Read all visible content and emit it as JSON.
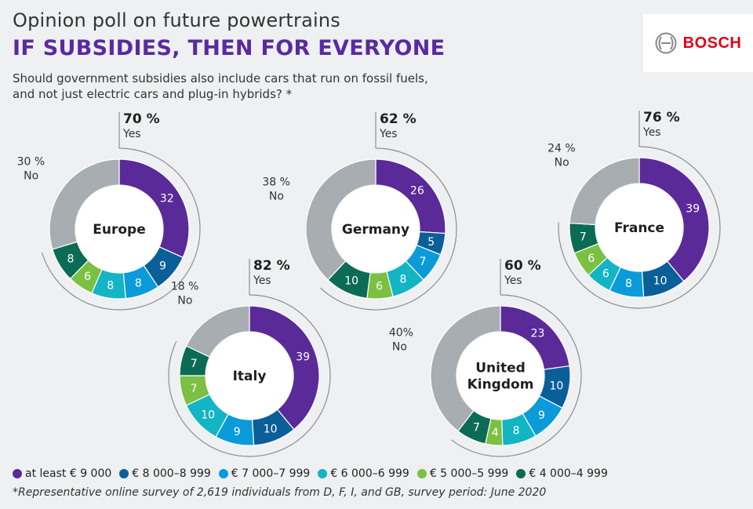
{
  "header": {
    "kicker": "Opinion poll on future powertrains",
    "headline": "IF SUBSIDIES, THEN FOR EVERYONE",
    "question_line1": "Should government subsidies also include cars that run on fossil fuels,",
    "question_line2": "and not just electric cars and plug-in hybrids? *"
  },
  "logo": {
    "text": "BOSCH",
    "color": "#e20015"
  },
  "footnote": "*Representative online survey of 2,619 individuals from D, F, I, and GB, survey period: June 2020",
  "legend": [
    {
      "label": "at least € 9 000",
      "color": "#5b2a99"
    },
    {
      "label": "€ 8 000–8 999",
      "color": "#0b5f99"
    },
    {
      "label": "€ 7 000–7 999",
      "color": "#0b9bd9"
    },
    {
      "label": "€ 6 000–6 999",
      "color": "#13b4c4"
    },
    {
      "label": "€ 5 000–5 999",
      "color": "#7cc043"
    },
    {
      "label": "€ 4 000–4 999",
      "color": "#0c6b55"
    }
  ],
  "chart_data": {
    "type": "donut",
    "title": "Opinion poll on future powertrains",
    "subtitle": "IF SUBSIDIES, THEN FOR EVERYONE",
    "series_names": [
      "at least € 9 000",
      "€ 8 000–8 999",
      "€ 7 000–7 999",
      "€ 6 000–6 999",
      "€ 5 000–5 999",
      "€ 4 000–4 999"
    ],
    "no_color": "#a8adb2",
    "charts": [
      {
        "name": "Europe",
        "name_lines": [
          "Europe"
        ],
        "yes_pct": "70 %",
        "yes_label": "Yes",
        "no_pct": "30 %",
        "no_label": "No",
        "values": [
          32,
          9,
          8,
          8,
          6,
          8
        ],
        "no": 30
      },
      {
        "name": "Germany",
        "name_lines": [
          "Germany"
        ],
        "yes_pct": "62 %",
        "yes_label": "Yes",
        "no_pct": "38 %",
        "no_label": "No",
        "values": [
          26,
          5,
          7,
          8,
          6,
          10
        ],
        "no": 38
      },
      {
        "name": "France",
        "name_lines": [
          "France"
        ],
        "yes_pct": "76 %",
        "yes_label": "Yes",
        "no_pct": "24 %",
        "no_label": "No",
        "values": [
          39,
          10,
          8,
          6,
          6,
          7
        ],
        "no": 24
      },
      {
        "name": "Italy",
        "name_lines": [
          "Italy"
        ],
        "yes_pct": "82 %",
        "yes_label": "Yes",
        "no_pct": "18 %",
        "no_label": "No",
        "values": [
          39,
          10,
          9,
          10,
          7,
          7
        ],
        "no": 18
      },
      {
        "name": "United Kingdom",
        "name_lines": [
          "United",
          "Kingdom"
        ],
        "yes_pct": "60 %",
        "yes_label": "Yes",
        "no_pct": "40%",
        "no_label": "No",
        "values": [
          23,
          10,
          9,
          8,
          4,
          7
        ],
        "no": 40
      }
    ]
  }
}
